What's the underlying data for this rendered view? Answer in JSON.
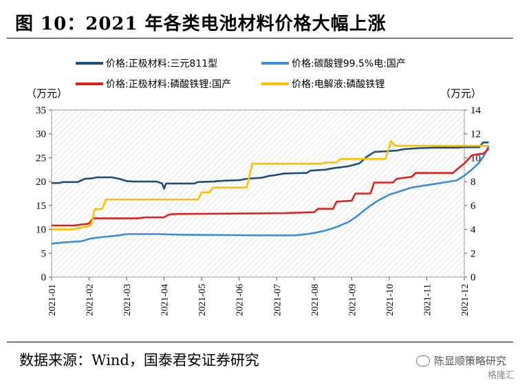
{
  "title": "图 10：2021 年各类电池材料价格大幅上涨",
  "source": "数据来源：Wind，国泰君安证券研究",
  "watermark": "陈显顺策略研究",
  "logo": "格隆汇",
  "colors": {
    "ternary811": "#1c4e80",
    "li2co3": "#3a8dd6",
    "lfp": "#e1201e",
    "electrolyte": "#ffbf00",
    "hatch": "#c9c9c9"
  },
  "chart_data": {
    "type": "line",
    "left_unit": "（万元）",
    "right_unit": "（万元）",
    "left_ylim": [
      0,
      35
    ],
    "left_ticks": [
      "0",
      "5",
      "10",
      "15",
      "20",
      "25",
      "30",
      "35"
    ],
    "right_ylim": [
      0,
      14
    ],
    "right_ticks": [
      "0",
      "2",
      "4",
      "6",
      "8",
      "10",
      "12",
      "14"
    ],
    "x_ticks": [
      "2021-01",
      "2021-02",
      "2021-03",
      "2021-04",
      "2021-05",
      "2021-06",
      "2021-07",
      "2021-08",
      "2021-09",
      "2021-10",
      "2021-11",
      "2021-12"
    ],
    "legend": [
      "价格:正极材料:三元811型",
      "价格:碳酸锂99.5%电:国产",
      "价格:正极材料:磷酸铁锂:国产",
      "价格:电解液:磷酸铁锂"
    ],
    "series": [
      {
        "name": "价格:正极材料:三元811型",
        "color_key": "ternary811",
        "axis": "left",
        "points": [
          [
            0,
            19.7
          ],
          [
            0.2,
            19.7
          ],
          [
            0.3,
            19.9
          ],
          [
            0.7,
            19.9
          ],
          [
            0.8,
            20.3
          ],
          [
            0.9,
            20.6
          ],
          [
            1.1,
            20.7
          ],
          [
            1.2,
            20.9
          ],
          [
            1.6,
            20.9
          ],
          [
            1.8,
            20.6
          ],
          [
            2.0,
            20.1
          ],
          [
            2.2,
            20.0
          ],
          [
            2.8,
            20.0
          ],
          [
            2.95,
            19.6
          ],
          [
            3.0,
            18.5
          ],
          [
            3.05,
            19.6
          ],
          [
            3.1,
            19.6
          ],
          [
            3.8,
            19.6
          ],
          [
            3.9,
            19.9
          ],
          [
            4.3,
            20.0
          ],
          [
            4.6,
            20.2
          ],
          [
            5.0,
            20.3
          ],
          [
            5.2,
            20.6
          ],
          [
            5.6,
            20.8
          ],
          [
            5.8,
            21.2
          ],
          [
            6.0,
            21.4
          ],
          [
            6.2,
            21.7
          ],
          [
            6.8,
            21.8
          ],
          [
            6.9,
            22.3
          ],
          [
            7.3,
            22.5
          ],
          [
            7.5,
            22.8
          ],
          [
            7.9,
            23.2
          ],
          [
            8.2,
            23.8
          ],
          [
            8.4,
            25.2
          ],
          [
            8.6,
            26.2
          ],
          [
            9.2,
            26.5
          ],
          [
            9.4,
            26.8
          ],
          [
            9.8,
            27.0
          ],
          [
            10.2,
            27.1
          ],
          [
            10.8,
            27.1
          ],
          [
            11.0,
            27.2
          ],
          [
            11.4,
            27.2
          ],
          [
            11.5,
            28.2
          ],
          [
            11.65,
            28.2
          ]
        ]
      },
      {
        "name": "价格:碳酸锂99.5%电:国产",
        "color_key": "li2co3",
        "axis": "right",
        "points": [
          [
            0,
            2.8
          ],
          [
            0.3,
            2.9
          ],
          [
            0.8,
            3.0
          ],
          [
            1.0,
            3.2
          ],
          [
            1.2,
            3.3
          ],
          [
            1.5,
            3.4
          ],
          [
            1.8,
            3.5
          ],
          [
            2.0,
            3.6
          ],
          [
            2.2,
            3.6
          ],
          [
            2.8,
            3.6
          ],
          [
            3.5,
            3.55
          ],
          [
            5.5,
            3.5
          ],
          [
            6.5,
            3.5
          ],
          [
            6.8,
            3.6
          ],
          [
            7.0,
            3.7
          ],
          [
            7.3,
            3.9
          ],
          [
            7.6,
            4.2
          ],
          [
            7.9,
            4.6
          ],
          [
            8.1,
            5.0
          ],
          [
            8.3,
            5.5
          ],
          [
            8.5,
            6.0
          ],
          [
            8.7,
            6.4
          ],
          [
            9.0,
            6.9
          ],
          [
            9.3,
            7.2
          ],
          [
            9.6,
            7.5
          ],
          [
            10.0,
            7.7
          ],
          [
            10.4,
            7.9
          ],
          [
            10.8,
            8.1
          ],
          [
            11.0,
            8.5
          ],
          [
            11.2,
            9.0
          ],
          [
            11.4,
            9.6
          ],
          [
            11.55,
            10.3
          ],
          [
            11.65,
            11.0
          ]
        ]
      },
      {
        "name": "价格:正极材料:磷酸铁锂:国产",
        "color_key": "lfp",
        "axis": "left",
        "points": [
          [
            0,
            10.8
          ],
          [
            0.6,
            10.8
          ],
          [
            0.8,
            11.0
          ],
          [
            1.0,
            11.2
          ],
          [
            1.1,
            12.3
          ],
          [
            2.3,
            12.3
          ],
          [
            2.5,
            12.5
          ],
          [
            3.0,
            12.5
          ],
          [
            3.1,
            13.0
          ],
          [
            3.2,
            13.2
          ],
          [
            6.2,
            13.4
          ],
          [
            7.0,
            13.6
          ],
          [
            7.1,
            14.3
          ],
          [
            7.5,
            14.3
          ],
          [
            7.6,
            15.8
          ],
          [
            8.0,
            16.0
          ],
          [
            8.1,
            17.5
          ],
          [
            8.5,
            17.5
          ],
          [
            8.6,
            19.8
          ],
          [
            9.1,
            19.8
          ],
          [
            9.2,
            20.6
          ],
          [
            9.6,
            21.0
          ],
          [
            9.7,
            21.8
          ],
          [
            10.7,
            21.8
          ],
          [
            10.8,
            22.5
          ],
          [
            11.0,
            23.8
          ],
          [
            11.2,
            25.5
          ],
          [
            11.4,
            25.8
          ],
          [
            11.5,
            25.8
          ],
          [
            11.6,
            26.5
          ],
          [
            11.65,
            27.0
          ]
        ]
      },
      {
        "name": "价格:电解液:磷酸铁锂",
        "color_key": "electrolyte",
        "axis": "right",
        "points": [
          [
            0,
            4.0
          ],
          [
            0.6,
            4.0
          ],
          [
            0.7,
            4.1
          ],
          [
            1.05,
            4.3
          ],
          [
            1.15,
            5.7
          ],
          [
            1.35,
            5.7
          ],
          [
            1.45,
            6.5
          ],
          [
            3.9,
            6.5
          ],
          [
            4.0,
            7.1
          ],
          [
            4.2,
            7.1
          ],
          [
            4.3,
            7.5
          ],
          [
            5.2,
            7.5
          ],
          [
            5.35,
            9.5
          ],
          [
            7.2,
            9.5
          ],
          [
            7.3,
            9.6
          ],
          [
            7.6,
            9.6
          ],
          [
            7.7,
            9.9
          ],
          [
            8.9,
            9.9
          ],
          [
            9.05,
            11.4
          ],
          [
            9.15,
            11.0
          ],
          [
            11.65,
            11.0
          ]
        ]
      }
    ]
  }
}
